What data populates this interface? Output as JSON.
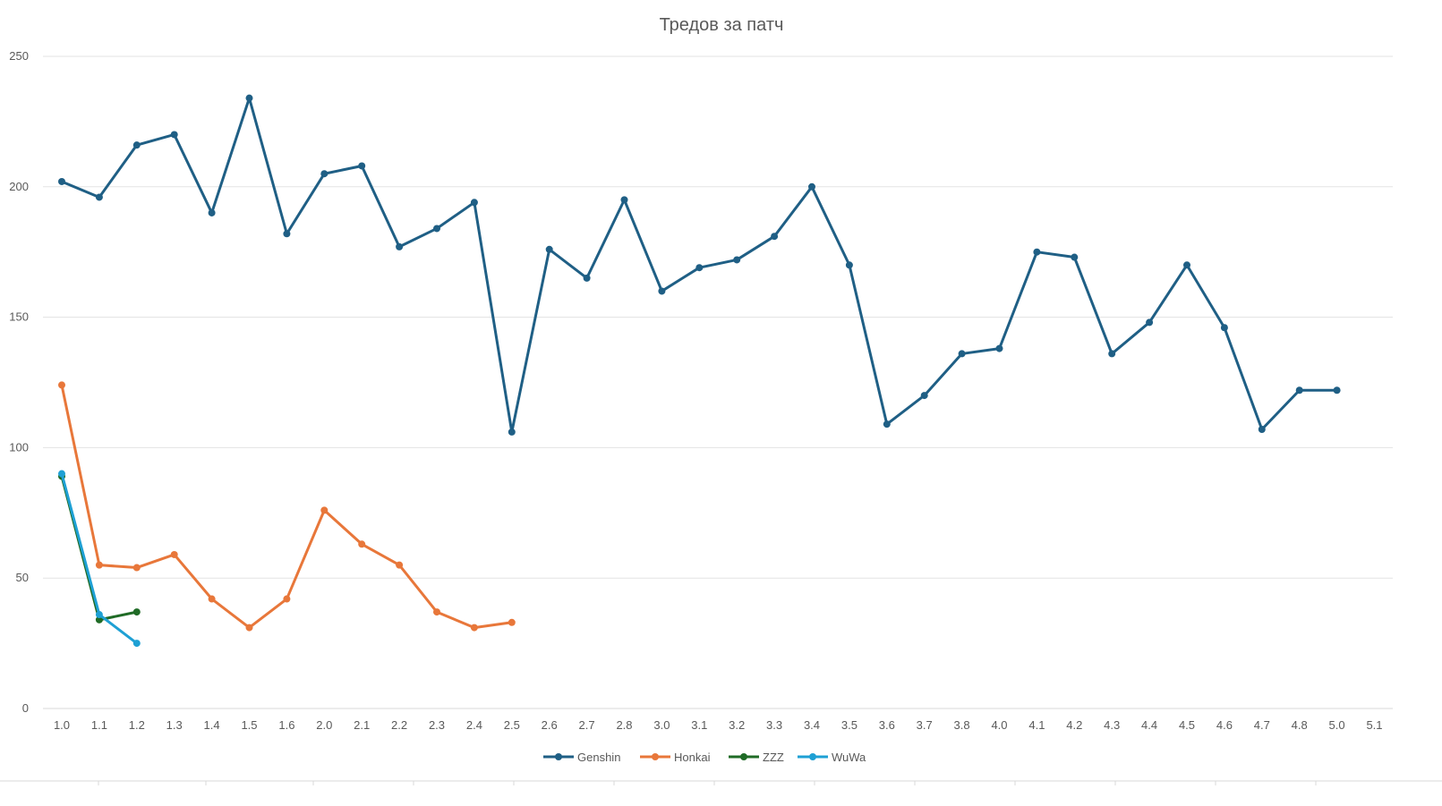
{
  "chart_data": {
    "type": "line",
    "title": "Тредов за патч",
    "xlabel": "",
    "ylabel": "",
    "ylim": [
      0,
      250
    ],
    "yticks": [
      0,
      50,
      100,
      150,
      200,
      250
    ],
    "grid": true,
    "legend_position": "bottom",
    "categories": [
      "1.0",
      "1.1",
      "1.2",
      "1.3",
      "1.4",
      "1.5",
      "1.6",
      "2.0",
      "2.1",
      "2.2",
      "2.3",
      "2.4",
      "2.5",
      "2.6",
      "2.7",
      "2.8",
      "3.0",
      "3.1",
      "3.2",
      "3.3",
      "3.4",
      "3.5",
      "3.6",
      "3.7",
      "3.8",
      "4.0",
      "4.1",
      "4.2",
      "4.3",
      "4.4",
      "4.5",
      "4.6",
      "4.7",
      "4.8",
      "5.0",
      "5.1"
    ],
    "series": [
      {
        "name": "Genshin",
        "color": "#1f5f85",
        "values": [
          202,
          196,
          216,
          220,
          190,
          234,
          182,
          205,
          208,
          177,
          184,
          194,
          106,
          176,
          165,
          195,
          160,
          169,
          172,
          181,
          200,
          170,
          109,
          120,
          136,
          138,
          175,
          173,
          136,
          148,
          170,
          146,
          107,
          122,
          122,
          null
        ]
      },
      {
        "name": "Honkai",
        "color": "#e8773a",
        "values": [
          124,
          55,
          54,
          59,
          42,
          31,
          42,
          76,
          63,
          55,
          37,
          31,
          33,
          null,
          null,
          null,
          null,
          null,
          null,
          null,
          null,
          null,
          null,
          null,
          null,
          null,
          null,
          null,
          null,
          null,
          null,
          null,
          null,
          null,
          null,
          null
        ]
      },
      {
        "name": "ZZZ",
        "color": "#1f6b26",
        "values": [
          89,
          34,
          37,
          null,
          null,
          null,
          null,
          null,
          null,
          null,
          null,
          null,
          null,
          null,
          null,
          null,
          null,
          null,
          null,
          null,
          null,
          null,
          null,
          null,
          null,
          null,
          null,
          null,
          null,
          null,
          null,
          null,
          null,
          null,
          null,
          null
        ]
      },
      {
        "name": "WuWa",
        "color": "#1ea0d4",
        "values": [
          90,
          36,
          25,
          null,
          null,
          null,
          null,
          null,
          null,
          null,
          null,
          null,
          null,
          null,
          null,
          null,
          null,
          null,
          null,
          null,
          null,
          null,
          null,
          null,
          null,
          null,
          null,
          null,
          null,
          null,
          null,
          null,
          null,
          null,
          null,
          null
        ]
      }
    ]
  }
}
